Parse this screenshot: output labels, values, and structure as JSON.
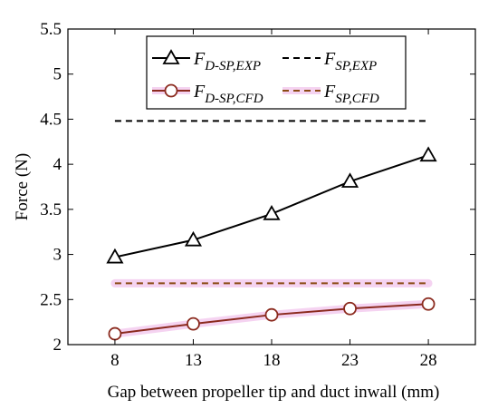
{
  "chart_data": {
    "type": "line",
    "xlabel": "Gap between propeller tip and duct inwall (mm)",
    "ylabel": "Force (N)",
    "x": [
      8,
      13,
      18,
      23,
      28
    ],
    "xlim": [
      5,
      31
    ],
    "ylim": [
      2,
      5.5
    ],
    "xticks": [
      "8",
      "13",
      "18",
      "23",
      "28"
    ],
    "yticks": [
      "2",
      "2.5",
      "3",
      "3.5",
      "4",
      "4.5",
      "5",
      "5.5"
    ],
    "grid": false,
    "legend_position": "top-center",
    "series": [
      {
        "name_main": "F",
        "name_sub": "D-SP,EXP",
        "style": "solid",
        "marker": "triangle",
        "color": "#000000",
        "values": [
          2.97,
          3.16,
          3.45,
          3.81,
          4.1
        ]
      },
      {
        "name_main": "F",
        "name_sub": "SP,EXP",
        "style": "dashed",
        "marker": "none",
        "color": "#000000",
        "values": [
          4.48,
          4.48,
          4.48,
          4.48,
          4.48
        ]
      },
      {
        "name_main": "F",
        "name_sub": "D-SP,CFD",
        "style": "solid",
        "marker": "circle",
        "color": "#8b2a1e",
        "glow": "#f2c8ee",
        "values": [
          2.12,
          2.23,
          2.33,
          2.4,
          2.45
        ]
      },
      {
        "name_main": "F",
        "name_sub": "SP,CFD",
        "style": "dashed",
        "marker": "none",
        "color": "#8b4a14",
        "glow": "#f2c8ee",
        "values": [
          2.68,
          2.68,
          2.68,
          2.68,
          2.68
        ]
      }
    ]
  }
}
